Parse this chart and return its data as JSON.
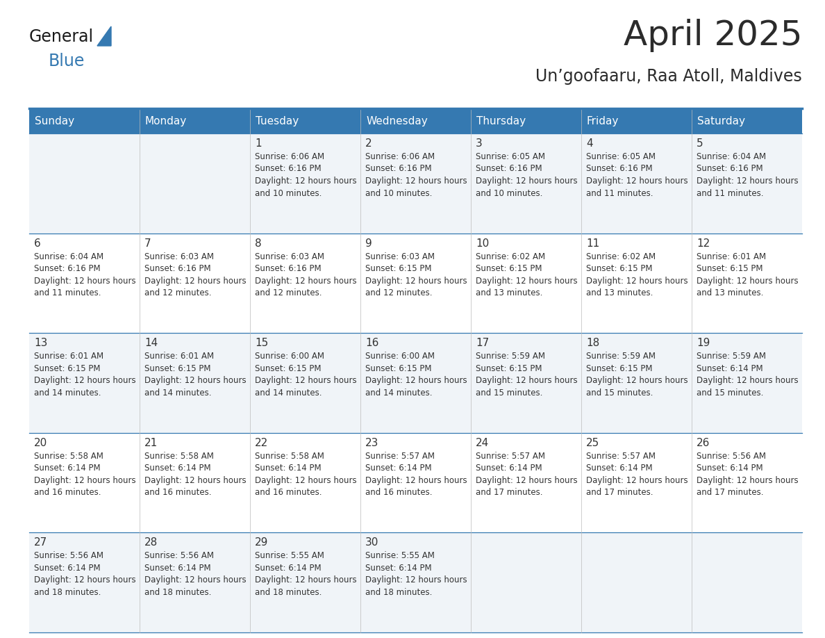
{
  "title": "April 2025",
  "subtitle": "Un’goofaaru, Raa Atoll, Maldives",
  "header_bg_color": "#3579B1",
  "header_text_color": "#FFFFFF",
  "row_bg_even": "#F0F4F8",
  "row_bg_odd": "#FFFFFF",
  "border_color": "#3579B1",
  "cell_border_color": "#3579B1",
  "text_color": "#333333",
  "days_of_week": [
    "Sunday",
    "Monday",
    "Tuesday",
    "Wednesday",
    "Thursday",
    "Friday",
    "Saturday"
  ],
  "calendar_data": [
    [
      {
        "day": "",
        "sunrise": "",
        "sunset": "",
        "daylight": ""
      },
      {
        "day": "",
        "sunrise": "",
        "sunset": "",
        "daylight": ""
      },
      {
        "day": "1",
        "sunrise": "6:06 AM",
        "sunset": "6:16 PM",
        "daylight": "12 hours and 10 minutes."
      },
      {
        "day": "2",
        "sunrise": "6:06 AM",
        "sunset": "6:16 PM",
        "daylight": "12 hours and 10 minutes."
      },
      {
        "day": "3",
        "sunrise": "6:05 AM",
        "sunset": "6:16 PM",
        "daylight": "12 hours and 10 minutes."
      },
      {
        "day": "4",
        "sunrise": "6:05 AM",
        "sunset": "6:16 PM",
        "daylight": "12 hours and 11 minutes."
      },
      {
        "day": "5",
        "sunrise": "6:04 AM",
        "sunset": "6:16 PM",
        "daylight": "12 hours and 11 minutes."
      }
    ],
    [
      {
        "day": "6",
        "sunrise": "6:04 AM",
        "sunset": "6:16 PM",
        "daylight": "12 hours and 11 minutes."
      },
      {
        "day": "7",
        "sunrise": "6:03 AM",
        "sunset": "6:16 PM",
        "daylight": "12 hours and 12 minutes."
      },
      {
        "day": "8",
        "sunrise": "6:03 AM",
        "sunset": "6:16 PM",
        "daylight": "12 hours and 12 minutes."
      },
      {
        "day": "9",
        "sunrise": "6:03 AM",
        "sunset": "6:15 PM",
        "daylight": "12 hours and 12 minutes."
      },
      {
        "day": "10",
        "sunrise": "6:02 AM",
        "sunset": "6:15 PM",
        "daylight": "12 hours and 13 minutes."
      },
      {
        "day": "11",
        "sunrise": "6:02 AM",
        "sunset": "6:15 PM",
        "daylight": "12 hours and 13 minutes."
      },
      {
        "day": "12",
        "sunrise": "6:01 AM",
        "sunset": "6:15 PM",
        "daylight": "12 hours and 13 minutes."
      }
    ],
    [
      {
        "day": "13",
        "sunrise": "6:01 AM",
        "sunset": "6:15 PM",
        "daylight": "12 hours and 14 minutes."
      },
      {
        "day": "14",
        "sunrise": "6:01 AM",
        "sunset": "6:15 PM",
        "daylight": "12 hours and 14 minutes."
      },
      {
        "day": "15",
        "sunrise": "6:00 AM",
        "sunset": "6:15 PM",
        "daylight": "12 hours and 14 minutes."
      },
      {
        "day": "16",
        "sunrise": "6:00 AM",
        "sunset": "6:15 PM",
        "daylight": "12 hours and 14 minutes."
      },
      {
        "day": "17",
        "sunrise": "5:59 AM",
        "sunset": "6:15 PM",
        "daylight": "12 hours and 15 minutes."
      },
      {
        "day": "18",
        "sunrise": "5:59 AM",
        "sunset": "6:15 PM",
        "daylight": "12 hours and 15 minutes."
      },
      {
        "day": "19",
        "sunrise": "5:59 AM",
        "sunset": "6:14 PM",
        "daylight": "12 hours and 15 minutes."
      }
    ],
    [
      {
        "day": "20",
        "sunrise": "5:58 AM",
        "sunset": "6:14 PM",
        "daylight": "12 hours and 16 minutes."
      },
      {
        "day": "21",
        "sunrise": "5:58 AM",
        "sunset": "6:14 PM",
        "daylight": "12 hours and 16 minutes."
      },
      {
        "day": "22",
        "sunrise": "5:58 AM",
        "sunset": "6:14 PM",
        "daylight": "12 hours and 16 minutes."
      },
      {
        "day": "23",
        "sunrise": "5:57 AM",
        "sunset": "6:14 PM",
        "daylight": "12 hours and 16 minutes."
      },
      {
        "day": "24",
        "sunrise": "5:57 AM",
        "sunset": "6:14 PM",
        "daylight": "12 hours and 17 minutes."
      },
      {
        "day": "25",
        "sunrise": "5:57 AM",
        "sunset": "6:14 PM",
        "daylight": "12 hours and 17 minutes."
      },
      {
        "day": "26",
        "sunrise": "5:56 AM",
        "sunset": "6:14 PM",
        "daylight": "12 hours and 17 minutes."
      }
    ],
    [
      {
        "day": "27",
        "sunrise": "5:56 AM",
        "sunset": "6:14 PM",
        "daylight": "12 hours and 18 minutes."
      },
      {
        "day": "28",
        "sunrise": "5:56 AM",
        "sunset": "6:14 PM",
        "daylight": "12 hours and 18 minutes."
      },
      {
        "day": "29",
        "sunrise": "5:55 AM",
        "sunset": "6:14 PM",
        "daylight": "12 hours and 18 minutes."
      },
      {
        "day": "30",
        "sunrise": "5:55 AM",
        "sunset": "6:14 PM",
        "daylight": "12 hours and 18 minutes."
      },
      {
        "day": "",
        "sunrise": "",
        "sunset": "",
        "daylight": ""
      },
      {
        "day": "",
        "sunrise": "",
        "sunset": "",
        "daylight": ""
      },
      {
        "day": "",
        "sunrise": "",
        "sunset": "",
        "daylight": ""
      }
    ]
  ],
  "logo_general_color": "#1a1a1a",
  "logo_blue_color": "#3579B1",
  "logo_triangle_color": "#3579B1"
}
